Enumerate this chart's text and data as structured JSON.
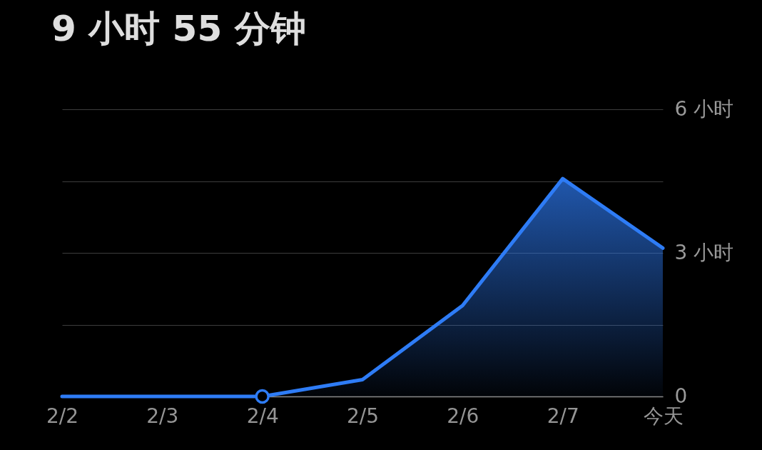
{
  "chart_data": {
    "type": "area",
    "title": "9 小时 55 分钟",
    "categories": [
      "2/2",
      "2/3",
      "2/4",
      "2/5",
      "2/6",
      "2/7",
      "今天"
    ],
    "series": [
      {
        "color": "#2e7cf6",
        "values": [
          0,
          0,
          0,
          0.35,
          1.9,
          4.55,
          3.1
        ]
      },
      {
        "type": "scatter",
        "x": [
          "2/4"
        ],
        "values": [
          0
        ],
        "color": "#2e7cf6",
        "marker": "circle"
      }
    ],
    "ylim": [
      0,
      6
    ],
    "yticks": [
      0,
      {
        "value": 1.5,
        "label": null
      },
      {
        "value": 3,
        "label": "3 小时"
      },
      {
        "value": 4.5,
        "label": null
      },
      {
        "value": 6,
        "label": "6 小时"
      }
    ],
    "grid": "y"
  }
}
